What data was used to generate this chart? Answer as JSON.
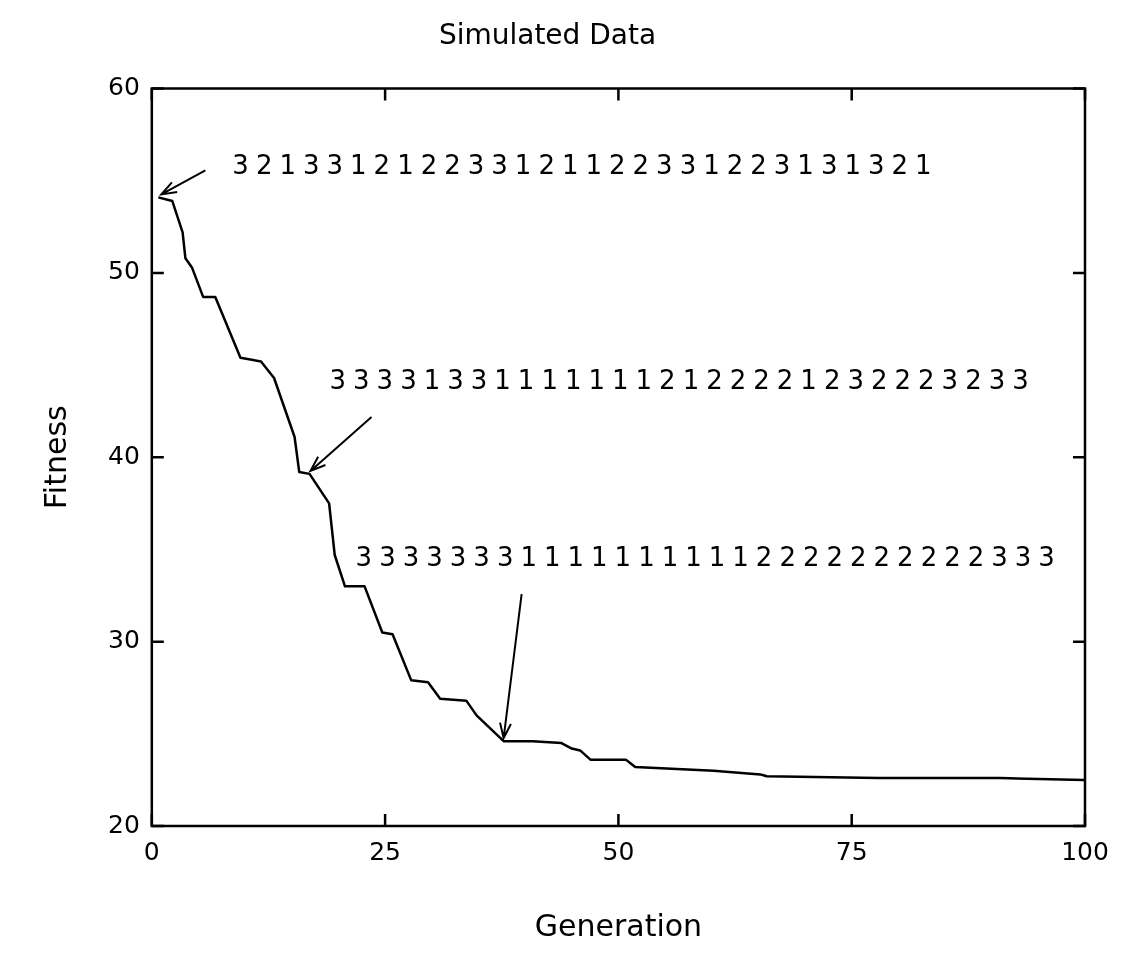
{
  "chart_data": {
    "type": "line",
    "title": "Simulated Data",
    "xlabel": "Generation",
    "ylabel": "Fitness",
    "series": [
      {
        "color": "#000000",
        "x": [
          0.7,
          2.2,
          3.3,
          3.6,
          4.3,
          5.5,
          6.8,
          9.5,
          11.7,
          13.1,
          14.2,
          15.3,
          15.8,
          16.9,
          19.0,
          19.6,
          20.7,
          22.8,
          24.7,
          25.8,
          27.8,
          29.6,
          30.9,
          33.7,
          34.8,
          37.7,
          40.8,
          43.9,
          45.0,
          45.9,
          47.0,
          50.8,
          51.8,
          60.2,
          65.2,
          65.9,
          77.9,
          90.9,
          99.9
        ],
        "values": [
          54.1,
          53.9,
          52.2,
          50.8,
          50.3,
          48.7,
          48.7,
          45.4,
          45.2,
          44.3,
          42.7,
          41.1,
          39.2,
          39.1,
          37.5,
          34.7,
          33.0,
          33.0,
          30.5,
          30.4,
          27.9,
          27.8,
          26.9,
          26.8,
          26.0,
          24.6,
          24.6,
          24.5,
          24.2,
          24.1,
          23.6,
          23.6,
          23.2,
          23.0,
          22.8,
          22.7,
          22.6,
          22.6,
          22.5
        ]
      }
    ],
    "xlim": [
      0,
      100
    ],
    "xticks": [
      0,
      25,
      50,
      75,
      100
    ],
    "ylim": [
      20,
      60
    ],
    "yticks": [
      20,
      30,
      40,
      50,
      60
    ],
    "grid": false,
    "legend": false,
    "marker": "none",
    "line_style": "solid",
    "annotations": [
      {
        "text": "321331212233121122331223131321",
        "x": 0.7,
        "y": 54.1
      },
      {
        "text": "333313311111112122221232223233",
        "x": 16.9,
        "y": 39.1
      },
      {
        "text": "333333311111111112222222222333",
        "x": 37.7,
        "y": 24.6
      }
    ]
  }
}
